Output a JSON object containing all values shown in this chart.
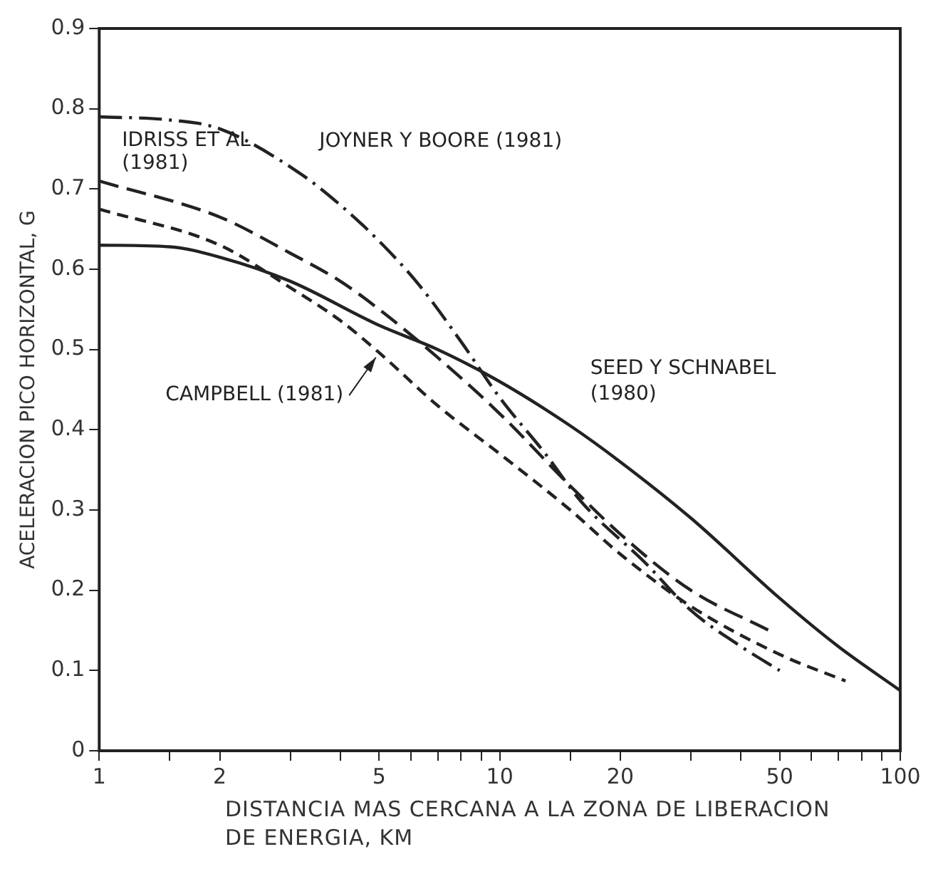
{
  "chart_data": {
    "type": "line",
    "xlabel": "DISTANCIA MAS CERCANA A LA ZONA DE LIBERACION DE ENERGIA, KM",
    "ylabel": "ACELERACION PICO HORIZONTAL, G",
    "log": "x",
    "grid": false,
    "legend": false,
    "marker": "none",
    "xlim": [
      1,
      100
    ],
    "xticks": [
      1,
      {
        "value": 1.5,
        "label": null
      },
      2,
      {
        "value": 3,
        "label": null
      },
      {
        "value": 4,
        "label": null
      },
      5,
      {
        "value": 6,
        "label": null
      },
      {
        "value": 7,
        "label": null
      },
      {
        "value": 8,
        "label": null
      },
      {
        "value": 9,
        "label": null
      },
      10,
      {
        "value": 15,
        "label": null
      },
      20,
      {
        "value": 30,
        "label": null
      },
      {
        "value": 40,
        "label": null
      },
      50,
      {
        "value": 60,
        "label": null
      },
      {
        "value": 70,
        "label": null
      },
      {
        "value": 80,
        "label": null
      },
      {
        "value": 90,
        "label": null
      },
      100
    ],
    "ylim": [
      0,
      0.9
    ],
    "yticks": [
      0,
      0.1,
      0.2,
      0.3,
      0.4,
      0.5,
      0.6,
      0.7,
      0.8,
      0.9
    ],
    "series": [
      {
        "name": "JOYNER Y BOORE (1981)",
        "color": "#222222",
        "line_style": "dashed",
        "x": [
          1,
          1.5,
          2,
          3.16,
          4,
          5,
          6.3,
          8,
          10,
          13,
          16,
          23,
          30,
          40,
          50
        ],
        "values": [
          0.79,
          0.786,
          0.775,
          0.72,
          0.68,
          0.635,
          0.58,
          0.51,
          0.44,
          0.37,
          0.31,
          0.235,
          0.175,
          0.13,
          0.1
        ]
      },
      {
        "name": "SEED Y SCHNABEL (1980)",
        "color": "#222222",
        "line_style": "solid",
        "x": [
          1,
          1.5,
          2,
          3,
          5,
          7,
          10,
          15,
          20,
          30,
          50,
          70,
          100
        ],
        "values": [
          0.63,
          0.628,
          0.615,
          0.585,
          0.53,
          0.5,
          0.46,
          0.405,
          0.36,
          0.29,
          0.19,
          0.13,
          0.075
        ]
      },
      {
        "name": "IDRISS ET AL (1981)",
        "color": "#222222",
        "line_style": "dashed",
        "x": [
          1,
          2,
          3,
          4,
          5,
          7,
          10,
          15,
          20,
          30,
          47
        ],
        "values": [
          0.71,
          0.665,
          0.62,
          0.585,
          0.55,
          0.49,
          0.42,
          0.33,
          0.27,
          0.2,
          0.15
        ]
      },
      {
        "name": "CAMPBELL (1981)",
        "color": "#222222",
        "line_style": "dashed",
        "x": [
          1,
          2,
          3,
          4,
          5,
          7,
          10,
          15,
          20,
          30,
          50,
          73
        ],
        "values": [
          0.675,
          0.63,
          0.577,
          0.536,
          0.496,
          0.43,
          0.37,
          0.3,
          0.245,
          0.18,
          0.12,
          0.087
        ]
      }
    ]
  }
}
